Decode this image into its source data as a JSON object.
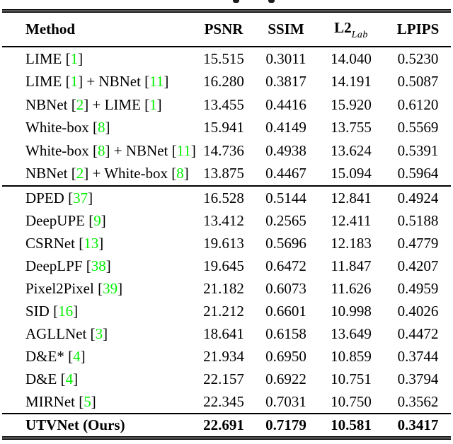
{
  "colors": {
    "background": "#ffffff",
    "text": "#000000",
    "rule": "#000000",
    "citation_green": "#00f000"
  },
  "table": {
    "headers": [
      {
        "label": "Method"
      },
      {
        "label": "PSNR"
      },
      {
        "label": "SSIM"
      },
      {
        "label": "L2",
        "sub": "Lab"
      },
      {
        "label": "LPIPS"
      }
    ],
    "groups": [
      {
        "rows": [
          {
            "method": "LIME [1]",
            "psnr": "15.515",
            "ssim": "0.3011",
            "l2": "14.040",
            "lpips": "0.5230"
          },
          {
            "method": "LIME [1] + NBNet [11]",
            "psnr": "16.280",
            "ssim": "0.3817",
            "l2": "14.191",
            "lpips": "0.5087"
          },
          {
            "method": "NBNet [2] + LIME [1]",
            "psnr": "13.455",
            "ssim": "0.4416",
            "l2": "15.920",
            "lpips": "0.6120"
          },
          {
            "method": "White-box [8]",
            "psnr": "15.941",
            "ssim": "0.4149",
            "l2": "13.755",
            "lpips": "0.5569"
          },
          {
            "method": "White-box [8] + NBNet [11]",
            "psnr": "14.736",
            "ssim": "0.4938",
            "l2": "13.624",
            "lpips": "0.5391"
          },
          {
            "method": "NBNet [2] + White-box [8]",
            "psnr": "13.875",
            "ssim": "0.4467",
            "l2": "15.094",
            "lpips": "0.5964"
          }
        ]
      },
      {
        "rows": [
          {
            "method": "DPED [37]",
            "psnr": "16.528",
            "ssim": "0.5144",
            "l2": "12.841",
            "lpips": "0.4924"
          },
          {
            "method": "DeepUPE [9]",
            "psnr": "13.412",
            "ssim": "0.2565",
            "l2": "12.411",
            "lpips": "0.5188"
          },
          {
            "method": "CSRNet [13]",
            "psnr": "19.613",
            "ssim": "0.5696",
            "l2": "12.183",
            "lpips": "0.4779"
          },
          {
            "method": "DeepLPF [38]",
            "psnr": "19.645",
            "ssim": "0.6472",
            "l2": "11.847",
            "lpips": "0.4207"
          },
          {
            "method": "Pixel2Pixel [39]",
            "psnr": "21.182",
            "ssim": "0.6073",
            "l2": "11.626",
            "lpips": "0.4959"
          },
          {
            "method": "SID [16]",
            "psnr": "21.212",
            "ssim": "0.6601",
            "l2": "10.998",
            "lpips": "0.4026"
          },
          {
            "method": "AGLLNet [3]",
            "psnr": "18.641",
            "ssim": "0.6158",
            "l2": "13.649",
            "lpips": "0.4472"
          },
          {
            "method": "D&E* [4]",
            "psnr": "21.934",
            "ssim": "0.6950",
            "l2": "10.859",
            "lpips": "0.3744"
          },
          {
            "method": "D&E [4]",
            "psnr": "22.157",
            "ssim": "0.6922",
            "l2": "10.751",
            "lpips": "0.3794"
          },
          {
            "method": "MIRNet [5]",
            "psnr": "22.345",
            "ssim": "0.7031",
            "l2": "10.750",
            "lpips": "0.3562"
          }
        ]
      },
      {
        "rows": [
          {
            "method": "UTVNet (Ours)",
            "psnr": "22.691",
            "ssim": "0.7179",
            "l2": "10.581",
            "lpips": "0.3417",
            "bold": true
          }
        ]
      }
    ]
  }
}
